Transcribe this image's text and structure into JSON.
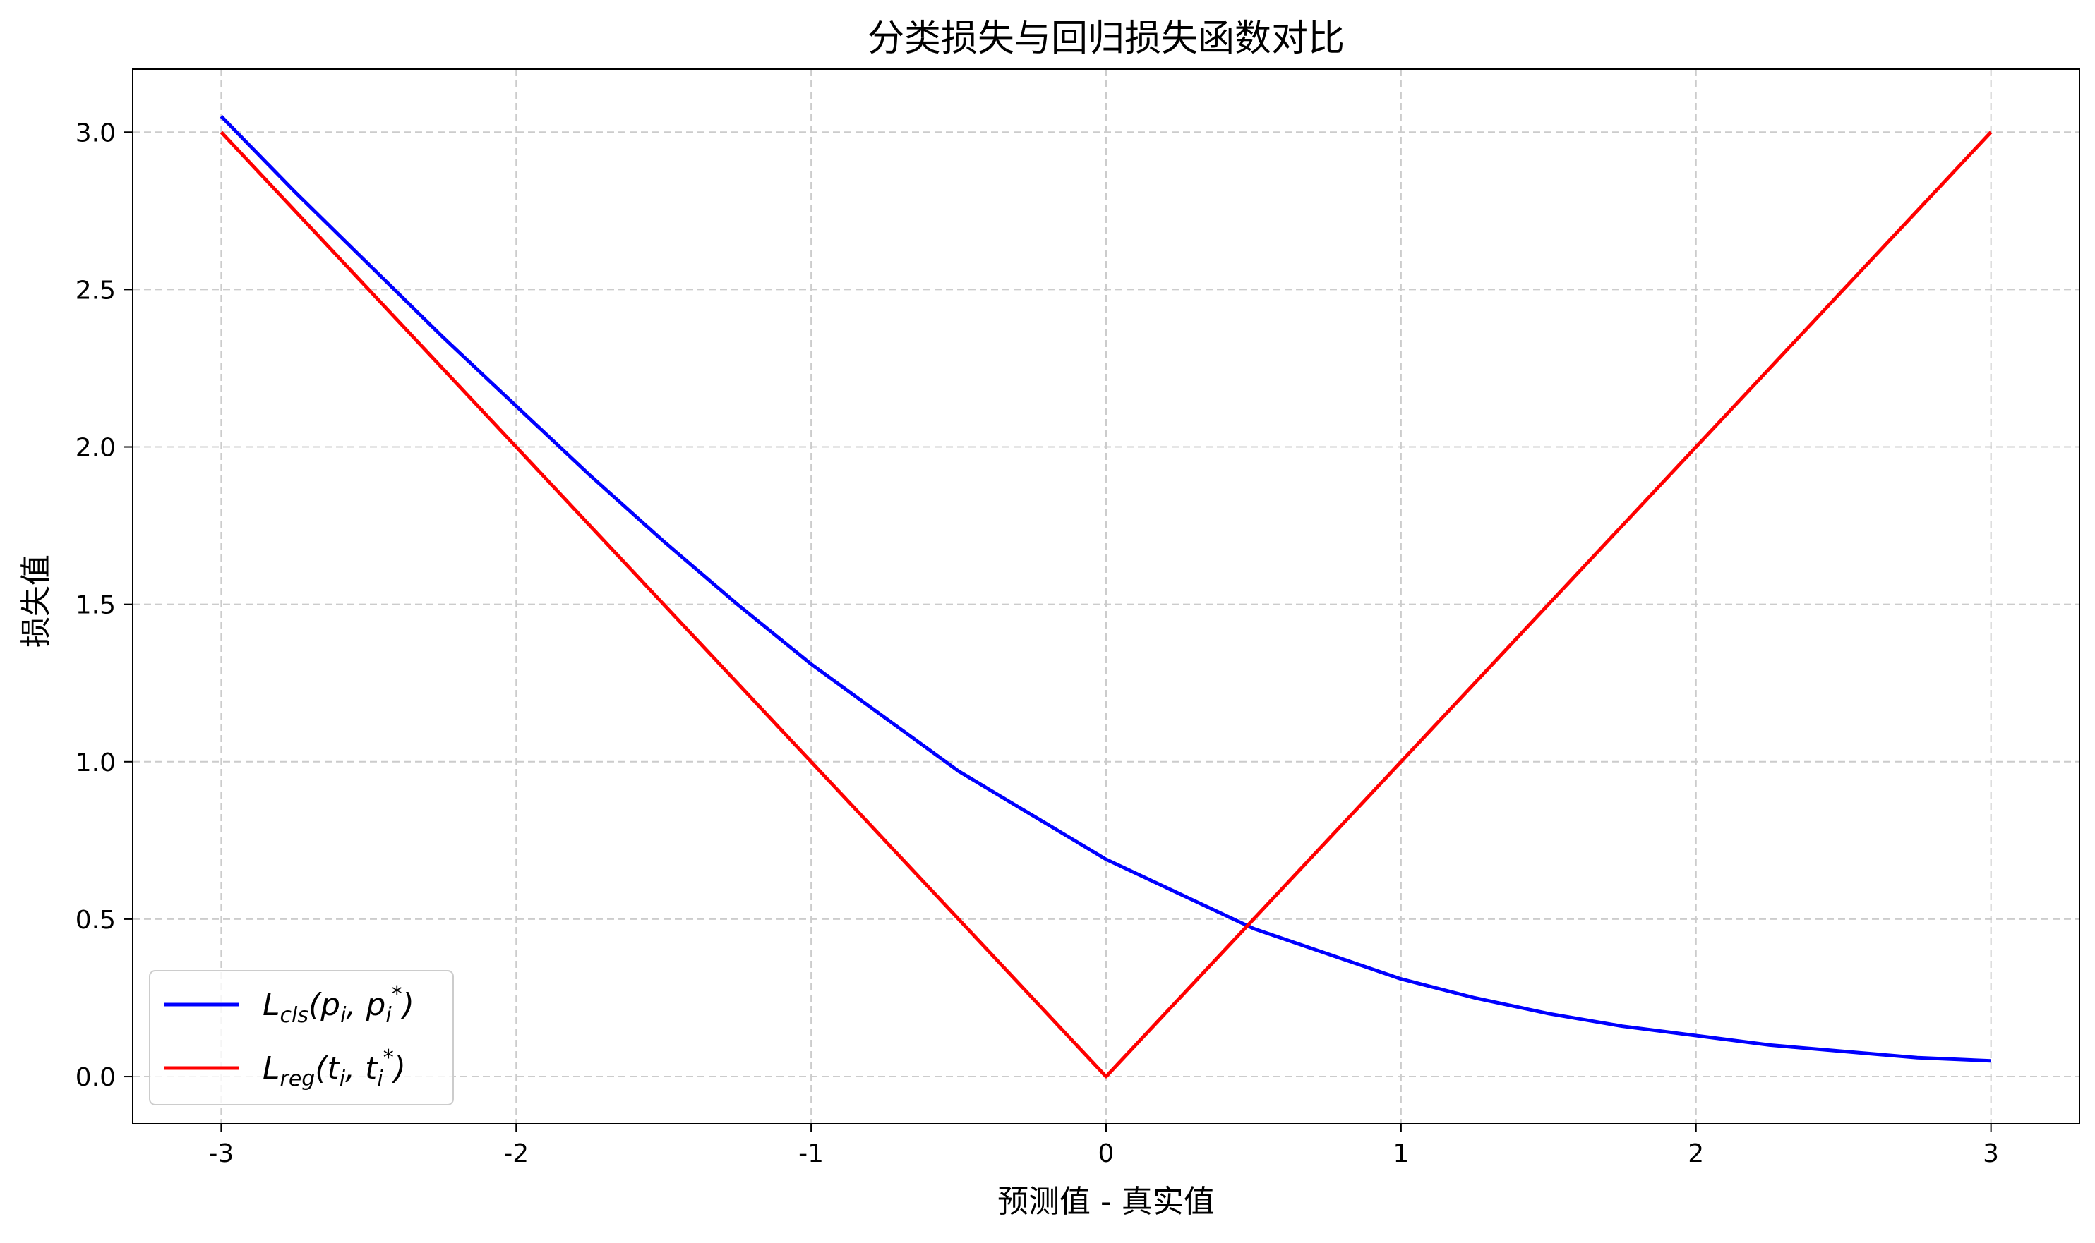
{
  "chart_data": {
    "type": "line",
    "title": "分类损失与回归损失函数对比",
    "xlabel": "预测值 - 真实值",
    "ylabel": "损失值",
    "xlim": [
      -3.3,
      3.3
    ],
    "ylim": [
      -0.15,
      3.2
    ],
    "xticks": [
      -3,
      -2,
      -1,
      0,
      1,
      2,
      3
    ],
    "xtick_labels": [
      "-3",
      "-2",
      "-1",
      "0",
      "1",
      "2",
      "3"
    ],
    "yticks": [
      0.0,
      0.5,
      1.0,
      1.5,
      2.0,
      2.5,
      3.0
    ],
    "ytick_labels": [
      "0.0",
      "0.5",
      "1.0",
      "1.5",
      "2.0",
      "2.5",
      "3.0"
    ],
    "grid": true,
    "grid_style": "dashed",
    "legend_position": "lower-left",
    "series": [
      {
        "name": "L_cls(p_i, p_i*)",
        "legend": {
          "base": "L",
          "sub": "cls",
          "args": [
            {
              "base": "p",
              "sub": "i",
              "sup": ""
            },
            {
              "base": "p",
              "sub": "i",
              "sup": "*"
            }
          ]
        },
        "color": "#0000ff",
        "x": [
          -3.0,
          -2.75,
          -2.5,
          -2.25,
          -2.0,
          -1.75,
          -1.5,
          -1.25,
          -1.0,
          -0.75,
          -0.5,
          -0.25,
          0.0,
          0.25,
          0.5,
          0.75,
          1.0,
          1.25,
          1.5,
          1.75,
          2.0,
          2.25,
          2.5,
          2.75,
          3.0
        ],
        "y": [
          3.05,
          2.81,
          2.58,
          2.35,
          2.13,
          1.91,
          1.7,
          1.5,
          1.31,
          1.14,
          0.97,
          0.83,
          0.69,
          0.58,
          0.47,
          0.39,
          0.31,
          0.25,
          0.2,
          0.16,
          0.13,
          0.1,
          0.08,
          0.06,
          0.05
        ]
      },
      {
        "name": "L_reg(t_i, t_i*)",
        "legend": {
          "base": "L",
          "sub": "reg",
          "args": [
            {
              "base": "t",
              "sub": "i",
              "sup": ""
            },
            {
              "base": "t",
              "sub": "i",
              "sup": "*"
            }
          ]
        },
        "color": "#ff0000",
        "x": [
          -3.0,
          0.0,
          3.0
        ],
        "y": [
          3.0,
          0.0,
          3.0
        ]
      }
    ]
  }
}
